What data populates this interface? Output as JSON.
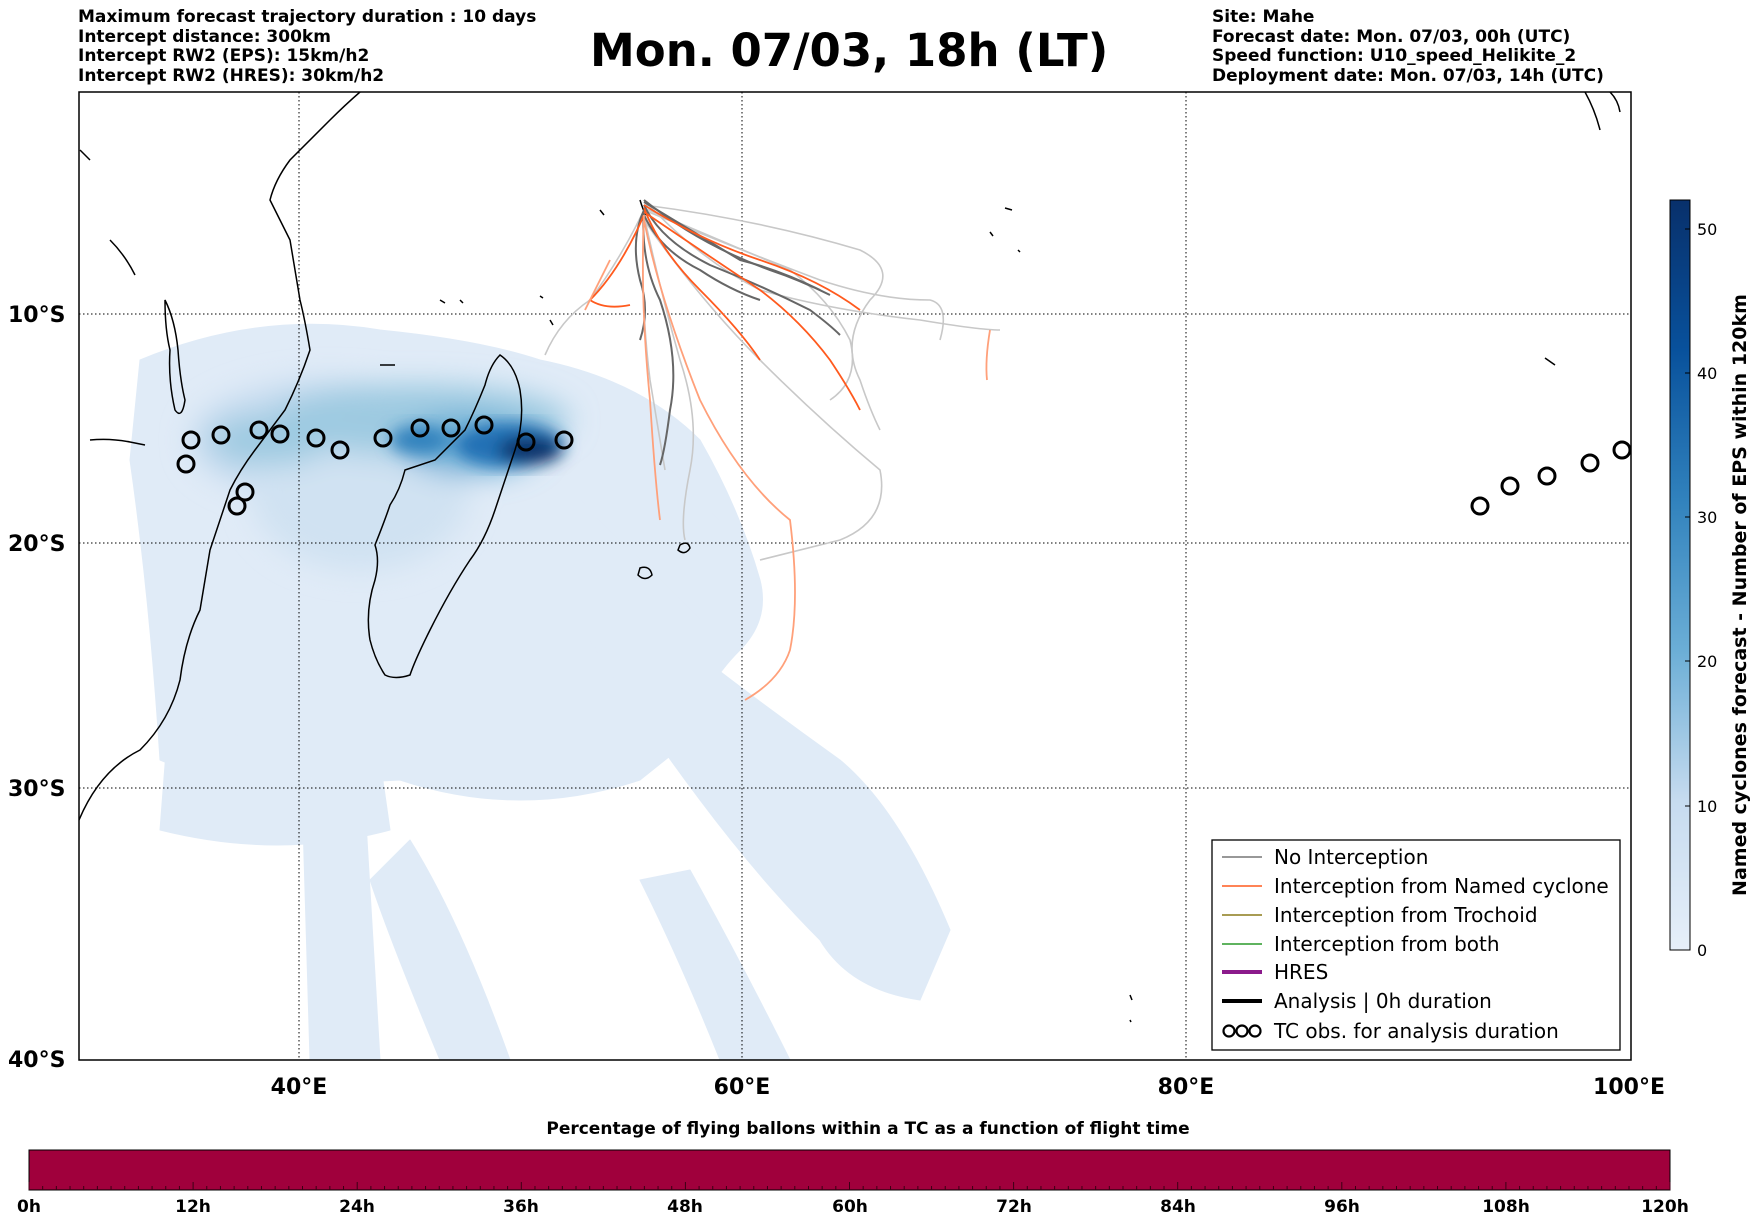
{
  "info_left": [
    "Maximum forecast trajectory duration : 10 days",
    "Intercept distance: 300km",
    "Intercept RW2 (EPS):  15km/h2",
    "Intercept RW2 (HRES): 30km/h2"
  ],
  "title": "Mon. 07/03, 18h (LT)",
  "info_right": [
    "Site: Mahe",
    "Forecast date: Mon. 07/03, 00h (UTC)",
    "Speed function: U10_speed_Helikite_2",
    "Deployment date: Mon. 07/03, 14h (UTC)"
  ],
  "map": {
    "lat_labels": [
      "10°S",
      "20°S",
      "30°S",
      "40°S"
    ],
    "lon_labels": [
      "40°E",
      "60°E",
      "80°E",
      "100°E"
    ],
    "colors": {
      "no_interception": "#777777",
      "named_cyclone": "#ff5a1e",
      "trochoid": "#8c7b1a",
      "both": "#2a9a2a",
      "hres": "#8b1a8b",
      "analysis": "#000000",
      "density_low": "#dbe8f6",
      "density_high": "#08306b"
    }
  },
  "legend": {
    "items": [
      {
        "key": "no_interception",
        "label": "No Interception"
      },
      {
        "key": "named_cyclone",
        "label": "Interception from Named cyclone"
      },
      {
        "key": "trochoid",
        "label": "Interception from Trochoid"
      },
      {
        "key": "both",
        "label": "Interception from both"
      },
      {
        "key": "hres",
        "label": "HRES"
      },
      {
        "key": "analysis",
        "label": "Analysis | 0h duration"
      },
      {
        "key": "tc_obs",
        "label": "TC obs. for analysis duration"
      }
    ]
  },
  "colorbar": {
    "label": "Named cyclones forecast - Number of EPS within 120km",
    "ticks": [
      "0",
      "10",
      "20",
      "30",
      "40",
      "50"
    ],
    "range": [
      0,
      52
    ]
  },
  "bottom_bar": {
    "title": "Percentage of flying ballons within a TC as a function of flight time",
    "ticks": [
      "0h",
      "12h",
      "24h",
      "36h",
      "48h",
      "60h",
      "72h",
      "84h",
      "96h",
      "108h",
      "120h"
    ],
    "fill_color": "#a0003c"
  }
}
